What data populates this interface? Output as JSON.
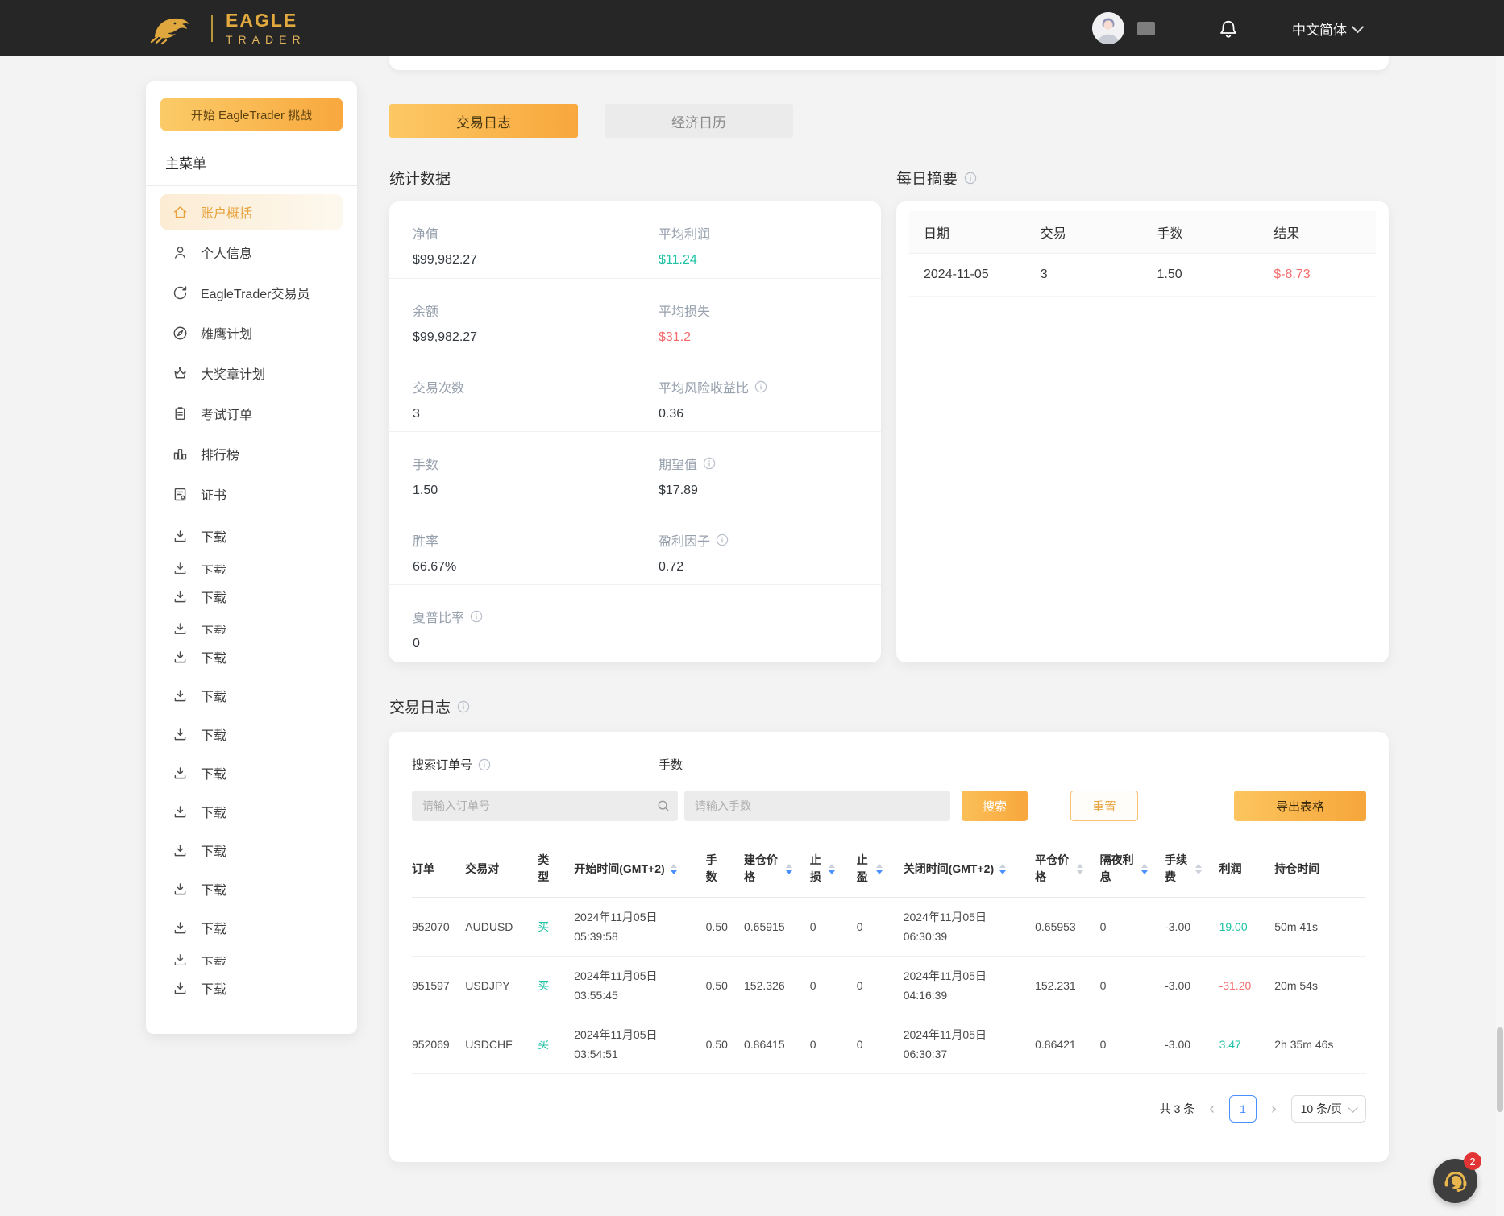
{
  "colors": {
    "accent": "#f5a93b",
    "teal": "#1fc2a5",
    "red": "#f56c6c",
    "blue": "#4a90ff",
    "navbar_bg": "#262626",
    "gold": "#e2aa3e"
  },
  "navbar": {
    "brand": {
      "line1": "EAGLE",
      "line2": "TRADER"
    },
    "language": "中文简体",
    "icons": [
      "eagle-logo-icon",
      "avatar",
      "bell-icon",
      "chevron-down-icon"
    ]
  },
  "sidebar": {
    "challenge_button": "开始 EagleTrader 挑战",
    "section_title": "主菜单",
    "items": [
      {
        "id": "account-overview",
        "label": "账户概括",
        "icon": "home",
        "active": true
      },
      {
        "id": "personal-info",
        "label": "个人信息",
        "icon": "user",
        "active": false
      },
      {
        "id": "eagletrader-trader",
        "label": "EagleTrader交易员",
        "icon": "refresh",
        "active": false
      },
      {
        "id": "eagle-plan",
        "label": "雄鹰计划",
        "icon": "compass",
        "active": false
      },
      {
        "id": "medal-plan",
        "label": "大奖章计划",
        "icon": "crown",
        "active": false
      },
      {
        "id": "exam-orders",
        "label": "考试订单",
        "icon": "clipboard",
        "active": false
      },
      {
        "id": "leaderboard",
        "label": "排行榜",
        "icon": "chart",
        "active": false
      },
      {
        "id": "certificate",
        "label": "证书",
        "icon": "cert",
        "active": false
      }
    ],
    "downloads": [
      {
        "label": "下载",
        "clipped": false
      },
      {
        "label": "下载",
        "clipped": true
      },
      {
        "label": "下载",
        "clipped": false
      },
      {
        "label": "下载",
        "clipped": true
      },
      {
        "label": "下载",
        "clipped": false
      },
      {
        "label": "下载",
        "clipped": false
      },
      {
        "label": "下载",
        "clipped": false
      },
      {
        "label": "下载",
        "clipped": false
      },
      {
        "label": "下载",
        "clipped": false
      },
      {
        "label": "下载",
        "clipped": false
      },
      {
        "label": "下载",
        "clipped": false
      },
      {
        "label": "下载",
        "clipped": false
      },
      {
        "label": "下载",
        "clipped": true
      },
      {
        "label": "下载",
        "clipped": false
      }
    ]
  },
  "tabs": [
    {
      "label": "交易日志",
      "active": true
    },
    {
      "label": "经济日历",
      "active": false
    }
  ],
  "stats": {
    "title": "统计数据",
    "rows": [
      {
        "left": {
          "label": "净值",
          "value": "$99,982.27"
        },
        "right": {
          "label": "平均利润",
          "value": "$11.24",
          "color": "teal"
        }
      },
      {
        "left": {
          "label": "余额",
          "value": "$99,982.27"
        },
        "right": {
          "label": "平均损失",
          "value": "$31.2",
          "color": "red"
        }
      },
      {
        "left": {
          "label": "交易次数",
          "value": "3"
        },
        "right": {
          "label": "平均风险收益比",
          "value": "0.36",
          "info": true
        }
      },
      {
        "left": {
          "label": "手数",
          "value": "1.50"
        },
        "right": {
          "label": "期望值",
          "value": "$17.89",
          "info": true
        }
      },
      {
        "left": {
          "label": "胜率",
          "value": "66.67%"
        },
        "right": {
          "label": "盈利因子",
          "value": "0.72",
          "info": true
        }
      },
      {
        "left": {
          "label": "夏普比率",
          "value": "0",
          "info": true
        },
        "right": null
      }
    ]
  },
  "daily_summary": {
    "title": "每日摘要",
    "columns": [
      "日期",
      "交易",
      "手数",
      "结果"
    ],
    "rows": [
      {
        "cells": [
          "2024-11-05",
          "3",
          "1.50",
          "$-8.73"
        ],
        "result_color": "red"
      }
    ]
  },
  "trade_log": {
    "title": "交易日志",
    "search_label": "搜索订单号",
    "lots_label": "手数",
    "search_placeholder": "请输入订单号",
    "lots_placeholder": "请输入手数",
    "search_button": "搜索",
    "reset_button": "重置",
    "export_button": "导出表格",
    "columns": [
      {
        "label": "订单",
        "w": "5.6%"
      },
      {
        "label": "交易对",
        "w": "7.6%"
      },
      {
        "label": "类型",
        "w": "3.8%",
        "wrap": "1.2em"
      },
      {
        "label": "开始时间(GMT+2)",
        "w": "13.8%",
        "sort": "active"
      },
      {
        "label": "手数",
        "w": "4%",
        "wrap": "1.2em"
      },
      {
        "label": "建仓价格",
        "w": "6.9%",
        "wrap": "3.2em",
        "sort": "active"
      },
      {
        "label": "止损",
        "w": "4.9%",
        "wrap": "1.2em",
        "sort": "active"
      },
      {
        "label": "止盈",
        "w": "4.9%",
        "wrap": "1.2em",
        "sort": "active"
      },
      {
        "label": "关闭时间(GMT+2)",
        "w": "13.8%",
        "sort": "active"
      },
      {
        "label": "平仓价格",
        "w": "6.8%",
        "wrap": "3.2em",
        "sort": "inactive"
      },
      {
        "label": "隔夜利息",
        "w": "6.8%",
        "wrap": "3.2em",
        "sort": "active"
      },
      {
        "label": "手续费",
        "w": "5.7%",
        "wrap": "2.2em",
        "sort": "inactive"
      },
      {
        "label": "利润",
        "w": "5.8%"
      },
      {
        "label": "持仓时间",
        "w": "9.6%"
      }
    ],
    "rows": [
      {
        "cells": [
          "952070",
          "AUDUSD",
          "买",
          "2024年11月05日 05:39:58",
          "0.50",
          "0.65915",
          "0",
          "0",
          "2024年11月05日 06:30:39",
          "0.65953",
          "0",
          "-3.00",
          "19.00",
          "50m 41s"
        ],
        "profit_color": "teal"
      },
      {
        "cells": [
          "951597",
          "USDJPY",
          "买",
          "2024年11月05日 03:55:45",
          "0.50",
          "152.326",
          "0",
          "0",
          "2024年11月05日 04:16:39",
          "152.231",
          "0",
          "-3.00",
          "-31.20",
          "red_profit"
        ],
        "profit_color": "red",
        "duration": "20m 54s"
      },
      {
        "cells": [
          "952069",
          "USDCHF",
          "买",
          "2024年11月05日 03:54:51",
          "0.50",
          "0.86415",
          "0",
          "0",
          "2024年11月05日 06:30:37",
          "0.86421",
          "0",
          "-3.00",
          "3.47",
          "2h 35m 46s"
        ],
        "profit_color": "teal"
      }
    ],
    "row2_duration_fix": "20m 54s",
    "pagination": {
      "total": "共 3 条",
      "page": "1",
      "page_size": "10 条/页"
    }
  },
  "chat": {
    "badge": "2"
  }
}
